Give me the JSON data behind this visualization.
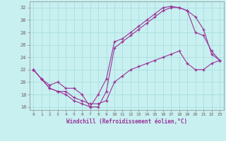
{
  "xlabel": "Windchill (Refroidissement éolien,°C)",
  "bg_color": "#c8f0f0",
  "line_color": "#993399",
  "grid_color": "#aadddd",
  "xlim": [
    -0.5,
    23.5
  ],
  "ylim": [
    15.5,
    33
  ],
  "xticks": [
    0,
    1,
    2,
    3,
    4,
    5,
    6,
    7,
    8,
    9,
    10,
    11,
    12,
    13,
    14,
    15,
    16,
    17,
    18,
    19,
    20,
    21,
    22,
    23
  ],
  "yticks": [
    16,
    18,
    20,
    22,
    24,
    26,
    28,
    30,
    32
  ],
  "line1_x": [
    0,
    1,
    2,
    3,
    4,
    5,
    6,
    7,
    8,
    9,
    10,
    11,
    12,
    13,
    14,
    15,
    16,
    17,
    18,
    19,
    20,
    21,
    22,
    23
  ],
  "line1_y": [
    22,
    20.5,
    19,
    18.5,
    18,
    17,
    16.5,
    16,
    18,
    20.5,
    26.5,
    27,
    28,
    29,
    30,
    31,
    32,
    32.2,
    32,
    31.5,
    28,
    27.5,
    25,
    23.5
  ],
  "line2_x": [
    0,
    1,
    2,
    3,
    4,
    5,
    6,
    7,
    8,
    9,
    10,
    11,
    12,
    13,
    14,
    15,
    16,
    17,
    18,
    19,
    20,
    21,
    22,
    23
  ],
  "line2_y": [
    22,
    20.5,
    19.5,
    20,
    19,
    19,
    18,
    16,
    16,
    18.5,
    25.5,
    26.5,
    27.5,
    28.5,
    29.5,
    30.5,
    31.5,
    32,
    32,
    31.5,
    30.5,
    28.5,
    24.5,
    23.5
  ],
  "line3_x": [
    0,
    1,
    2,
    3,
    4,
    5,
    6,
    7,
    8,
    9,
    10,
    11,
    12,
    13,
    14,
    15,
    16,
    17,
    18,
    19,
    20,
    21,
    22,
    23
  ],
  "line3_y": [
    22,
    20.5,
    19,
    18.5,
    18.5,
    17.5,
    17,
    16.5,
    16.5,
    17,
    20,
    21,
    22,
    22.5,
    23,
    23.5,
    24,
    24.5,
    25,
    23,
    22,
    22,
    23,
    23.5
  ]
}
